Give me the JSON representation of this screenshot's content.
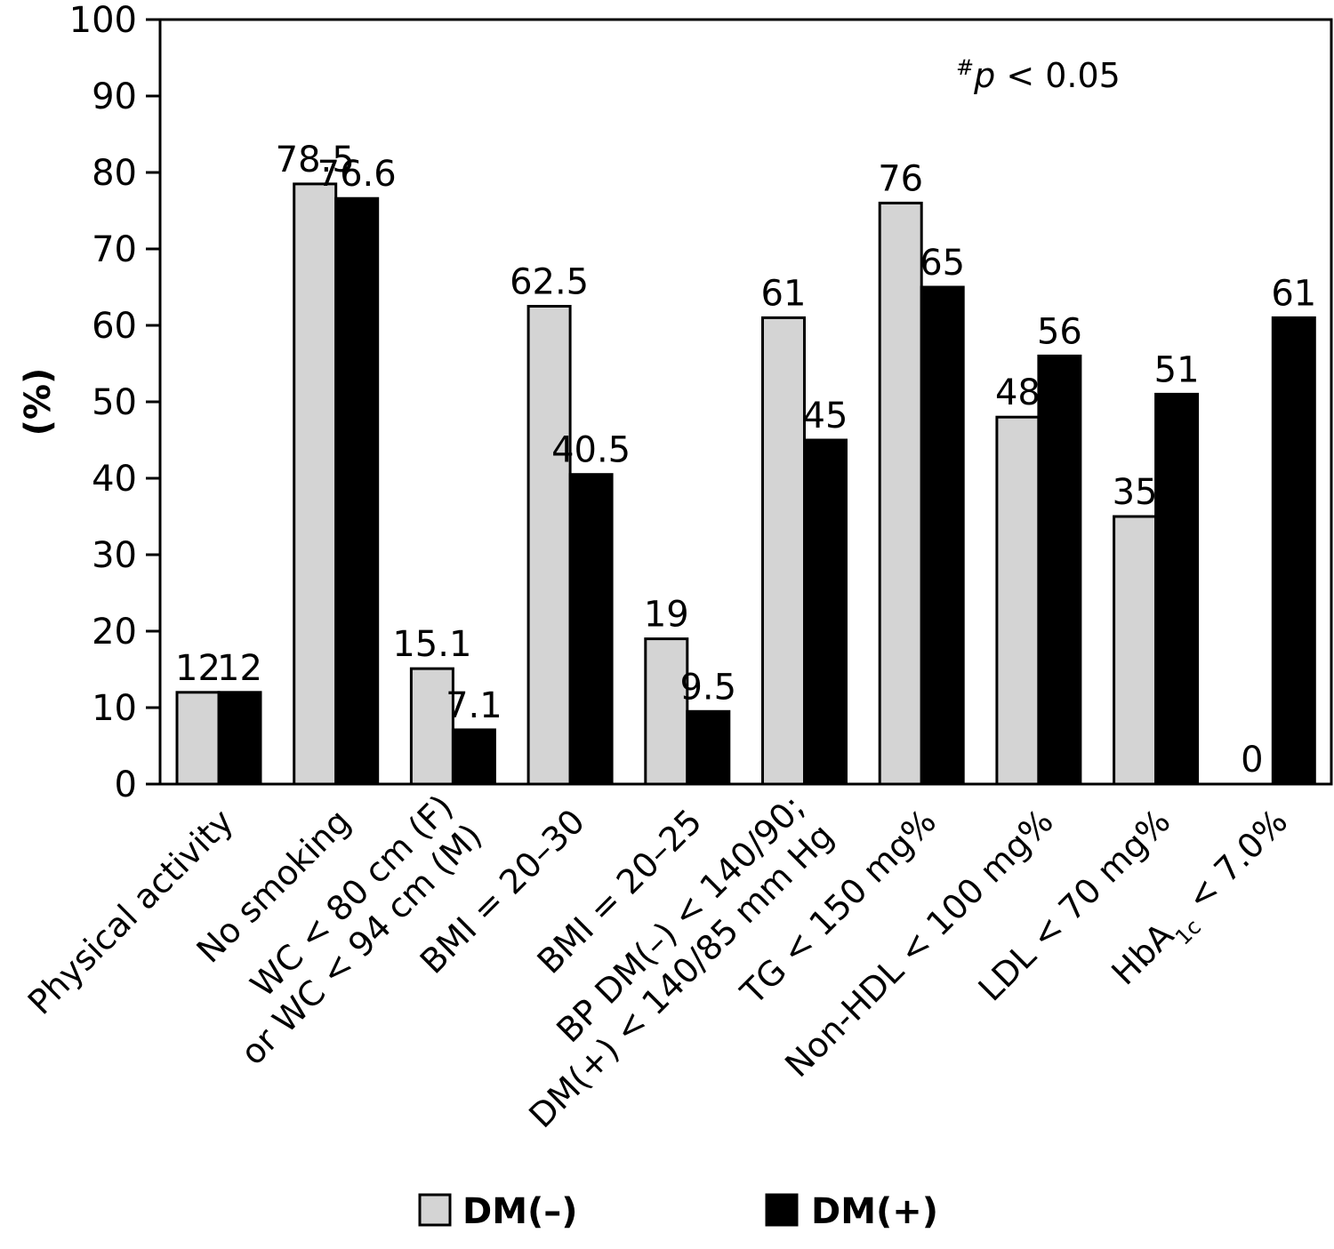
{
  "chart_data": {
    "type": "bar",
    "ylabel": "(%)",
    "ylim": [
      0,
      100
    ],
    "yticks": [
      0,
      10,
      20,
      30,
      40,
      50,
      60,
      70,
      80,
      90,
      100
    ],
    "grid": false,
    "legend_position": "bottom",
    "annotation": {
      "prefix": "#",
      "italic": "p",
      "rest": " < 0.05"
    },
    "categories": [
      {
        "lines": [
          [
            "Physical activity"
          ]
        ]
      },
      {
        "lines": [
          [
            "No smoking"
          ]
        ]
      },
      {
        "lines": [
          [
            "WC < 80 cm (F)"
          ],
          [
            "or WC < 94 cm (M)"
          ]
        ]
      },
      {
        "lines": [
          [
            "BMI = 20–30"
          ]
        ]
      },
      {
        "lines": [
          [
            "BMI = 20–25"
          ]
        ]
      },
      {
        "lines": [
          [
            "BP DM(–) < 140/90;"
          ],
          [
            "DM(+) < 140/85 mm Hg"
          ]
        ]
      },
      {
        "lines": [
          [
            "TG < 150 mg%"
          ]
        ]
      },
      {
        "lines": [
          [
            "Non-HDL < 100 mg%"
          ]
        ]
      },
      {
        "lines": [
          [
            "LDL < 70 mg%"
          ]
        ]
      },
      {
        "lines": [
          [
            "HbA",
            "1c",
            " < 7.0%"
          ]
        ]
      }
    ],
    "series": [
      {
        "name": "DM(–)",
        "color": "#d4d4d4",
        "values": [
          12,
          78.5,
          15.1,
          62.5,
          19,
          61,
          76,
          48,
          35,
          0
        ],
        "labels": [
          "12",
          "78.5",
          "15.1",
          "62.5",
          "19",
          "61",
          "76",
          "48",
          "35",
          "0"
        ]
      },
      {
        "name": "DM(+)",
        "color": "#000000",
        "values": [
          12,
          76.6,
          7.1,
          40.5,
          9.5,
          45,
          65,
          56,
          51,
          61
        ],
        "labels": [
          "12",
          "76.6",
          "7.1",
          "40.5",
          "9.5",
          "45",
          "65",
          "56",
          "51",
          "61"
        ]
      }
    ]
  }
}
